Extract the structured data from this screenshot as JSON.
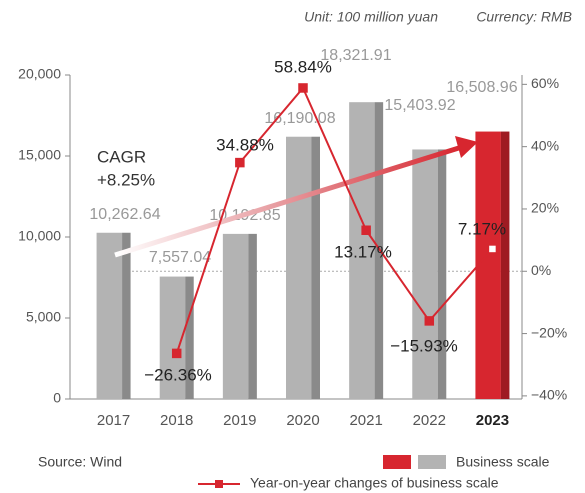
{
  "chart_data": {
    "type": "bar+line",
    "unit": "Unit: 100 million yuan",
    "currency": "Currency: RMB",
    "source": "Source: Wind",
    "annotation": [
      "CAGR",
      "+8.25%"
    ],
    "categories": [
      "2017",
      "2018",
      "2019",
      "2020",
      "2021",
      "2022",
      "2023"
    ],
    "highlight_index": 6,
    "series": [
      {
        "name": "Business scale",
        "type": "bar",
        "color": "#b3b3b3",
        "highlight_color": "#d7262f",
        "values": [
          10262.64,
          7557.04,
          10192.85,
          16190.08,
          18321.91,
          15403.92,
          16508.96
        ],
        "value_labels": [
          "10,262.64",
          "7,557.04",
          "10,192.85",
          "16,190.08",
          "18,321.91",
          "15,403.92",
          "16,508.96"
        ]
      },
      {
        "name": "Year-on-year changes of business scale",
        "type": "line",
        "axis": "y2",
        "color": "#d7262f",
        "values": [
          null,
          -26.36,
          34.88,
          58.84,
          13.17,
          -15.93,
          7.17
        ],
        "value_labels": [
          null,
          "−26.36%",
          "34.88%",
          "58.84%",
          "13.17%",
          "−15.93%",
          "7.17%"
        ]
      }
    ],
    "ylim": [
      0,
      20000
    ],
    "yticks": [
      0,
      {
        "value": 5000,
        "label": "5,000"
      },
      {
        "value": 10000,
        "label": "10,000"
      },
      {
        "value": 15000,
        "label": "15,000"
      },
      {
        "value": 20000,
        "label": "20,000"
      }
    ],
    "y2lim": [
      -41,
      63
    ],
    "y2ticks": [
      {
        "value": -40,
        "label": "−40%"
      },
      {
        "value": -20,
        "label": "−20%"
      },
      {
        "value": 0,
        "label": "0%"
      },
      {
        "value": 20,
        "label": "20%"
      },
      {
        "value": 40,
        "label": "40%"
      },
      {
        "value": 60,
        "label": "60%"
      }
    ]
  }
}
